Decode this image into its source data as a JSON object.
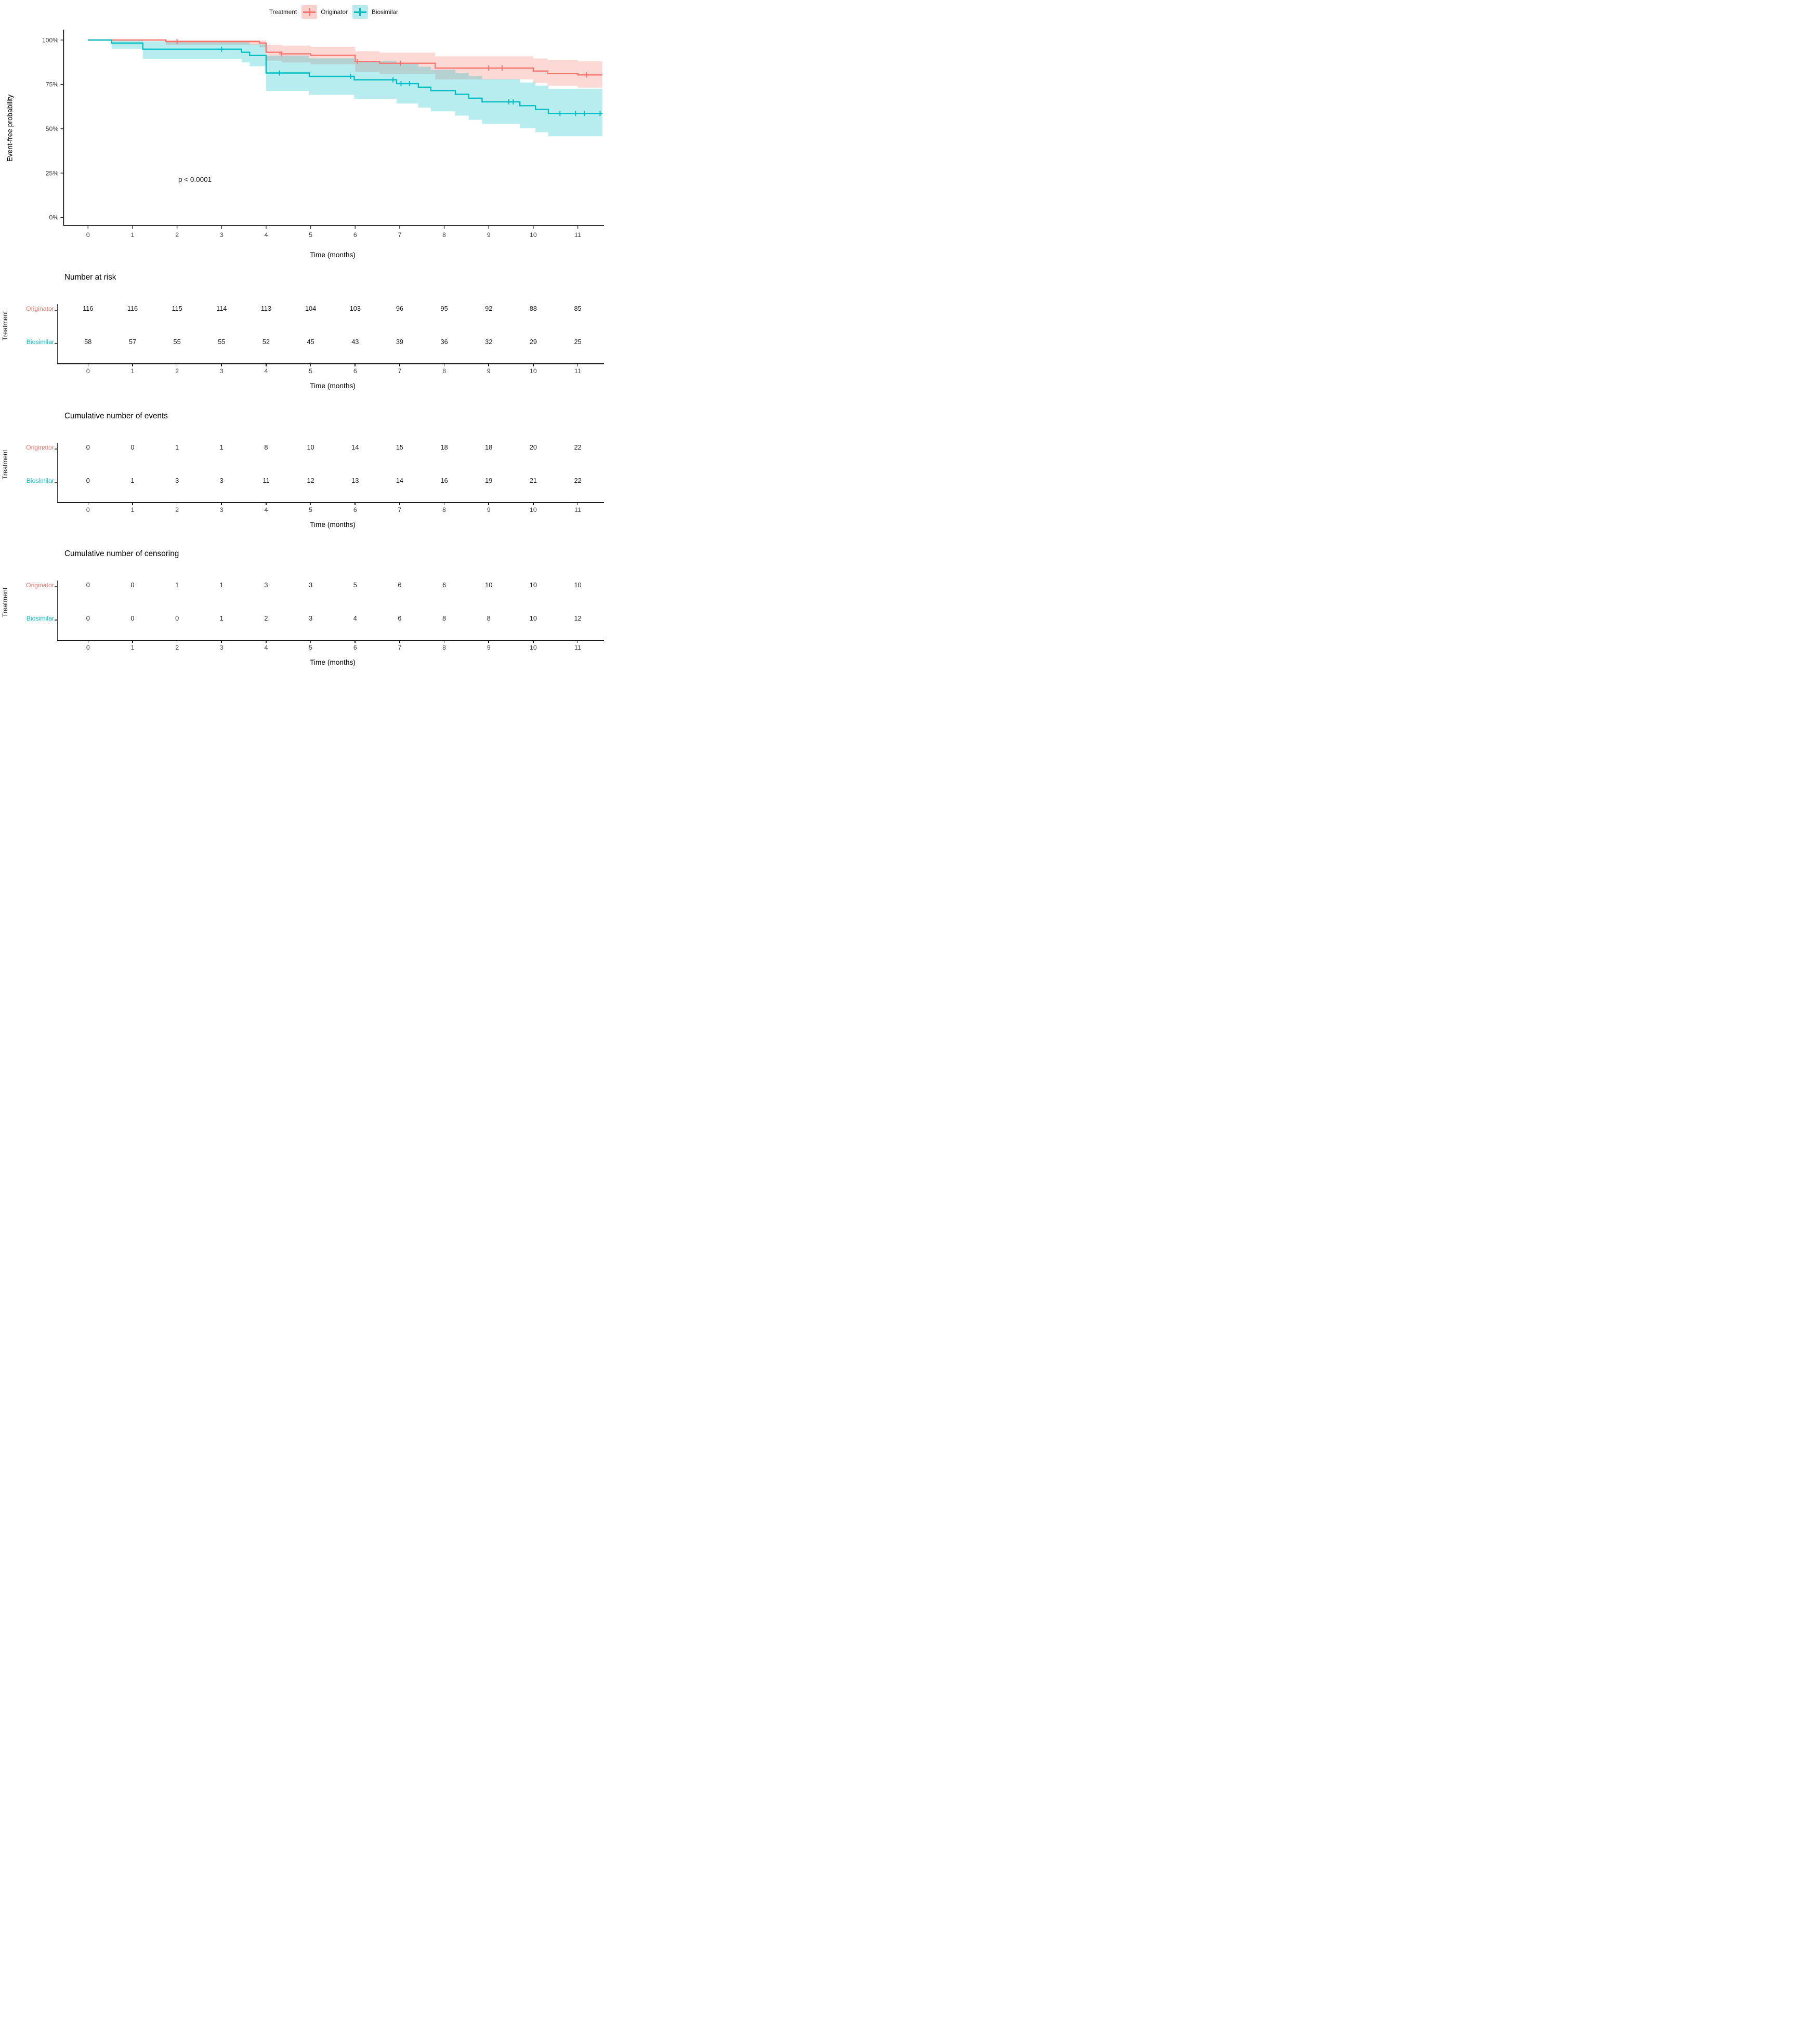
{
  "figure": {
    "legend": {
      "title": "Treatment",
      "items": [
        {
          "label": "Originator",
          "color": "#F8766D",
          "key_fill": "#FBD0CD"
        },
        {
          "label": "Biosimilar",
          "color": "#00BFC4",
          "key_fill": "#B7EBED"
        }
      ]
    },
    "km_plot": {
      "ylabel": "Event-free probability",
      "xlabel": "Time (months)",
      "pvalue": "p < 0.0001"
    }
  },
  "chart_data": {
    "type": "line",
    "subtype": "kaplan-meier-step-curves-with-confidence-bands",
    "title": "",
    "xlabel": "Time (months)",
    "ylabel": "Event-free probability",
    "xlim": [
      0,
      11.6
    ],
    "ylim": [
      0,
      100
    ],
    "grid": false,
    "legend_position": "top",
    "pvalue_annotation": {
      "text": "p < 0.0001",
      "x": 2.1,
      "y": 21
    },
    "xticks": [
      0,
      1,
      2,
      3,
      4,
      5,
      6,
      7,
      8,
      9,
      10,
      11
    ],
    "yticks": [
      {
        "v": 100,
        "label": "100%"
      },
      {
        "v": 75,
        "label": "75%"
      },
      {
        "v": 50,
        "label": "50%"
      },
      {
        "v": 25,
        "label": "25%"
      },
      {
        "v": 0,
        "label": "0%"
      }
    ],
    "series": [
      {
        "name": "Originator",
        "color": "#F8766D",
        "band_fill": "rgba(248,118,109,0.28)",
        "steps": [
          [
            0,
            100
          ],
          [
            1.75,
            99.1
          ],
          [
            3.85,
            98.3
          ],
          [
            4.0,
            93.1
          ],
          [
            4.35,
            92.2
          ],
          [
            5.0,
            91.4
          ],
          [
            6.0,
            87.9
          ],
          [
            6.55,
            86.9
          ],
          [
            7.8,
            84.2
          ],
          [
            10.0,
            82.5
          ],
          [
            10.32,
            81.2
          ],
          [
            11.0,
            80.3
          ],
          [
            11.55,
            80.3
          ]
        ],
        "censors": [
          [
            2.0,
            99.1
          ],
          [
            4.35,
            92.2
          ],
          [
            6.05,
            87.9
          ],
          [
            7.02,
            86.9
          ],
          [
            9.0,
            84.2
          ],
          [
            9.3,
            84.2
          ],
          [
            11.2,
            80.3
          ]
        ],
        "ci": [
          [
            0,
            100,
            100
          ],
          [
            1.75,
            100,
            97.2
          ],
          [
            3.85,
            99.8,
            95.9
          ],
          [
            4.0,
            97.3,
            88.3
          ],
          [
            4.35,
            96.9,
            87.3
          ],
          [
            5.0,
            96.2,
            86.3
          ],
          [
            6.0,
            93.7,
            82.1
          ],
          [
            6.55,
            92.9,
            81.0
          ],
          [
            7.8,
            90.8,
            77.8
          ],
          [
            10.0,
            89.6,
            75.7
          ],
          [
            10.32,
            88.8,
            74.2
          ],
          [
            11.0,
            88.1,
            73.1
          ],
          [
            11.55,
            88.1,
            73.1
          ]
        ]
      },
      {
        "name": "Biosimilar",
        "color": "#00BFC4",
        "band_fill": "rgba(0,191,196,0.28)",
        "steps": [
          [
            0,
            100
          ],
          [
            0.53,
            98.3
          ],
          [
            1.23,
            94.8
          ],
          [
            3.45,
            93.1
          ],
          [
            3.63,
            91.3
          ],
          [
            4.0,
            81.4
          ],
          [
            4.97,
            79.5
          ],
          [
            5.98,
            77.6
          ],
          [
            6.93,
            75.4
          ],
          [
            7.42,
            73.4
          ],
          [
            7.7,
            71.5
          ],
          [
            8.25,
            69.4
          ],
          [
            8.55,
            67.2
          ],
          [
            8.85,
            65.1
          ],
          [
            9.7,
            63.0
          ],
          [
            10.05,
            60.9
          ],
          [
            10.34,
            58.6
          ],
          [
            11.55,
            58.6
          ]
        ],
        "censors": [
          [
            3.0,
            94.8
          ],
          [
            4.3,
            81.4
          ],
          [
            5.9,
            79.5
          ],
          [
            6.85,
            77.6
          ],
          [
            7.03,
            75.4
          ],
          [
            7.22,
            75.4
          ],
          [
            9.45,
            65.1
          ],
          [
            9.55,
            65.1
          ],
          [
            10.6,
            58.6
          ],
          [
            10.95,
            58.6
          ],
          [
            11.15,
            58.6
          ],
          [
            11.5,
            58.6
          ]
        ],
        "ci": [
          [
            0,
            100,
            100
          ],
          [
            0.53,
            100,
            95.1
          ],
          [
            1.23,
            99.3,
            89.4
          ],
          [
            3.45,
            98.9,
            87.3
          ],
          [
            3.63,
            97.5,
            85.2
          ],
          [
            4.0,
            91.2,
            71.3
          ],
          [
            4.97,
            89.7,
            69.1
          ],
          [
            5.98,
            88.2,
            66.9
          ],
          [
            6.93,
            86.5,
            64.2
          ],
          [
            7.42,
            84.9,
            61.9
          ],
          [
            7.7,
            83.3,
            59.8
          ],
          [
            8.25,
            81.5,
            57.4
          ],
          [
            8.55,
            79.7,
            55.0
          ],
          [
            8.85,
            77.9,
            52.7
          ],
          [
            9.7,
            76.1,
            50.3
          ],
          [
            10.05,
            74.3,
            48.0
          ],
          [
            10.34,
            72.5,
            45.7
          ],
          [
            11.55,
            72.5,
            45.7
          ]
        ]
      }
    ],
    "tables": [
      {
        "title": "Number at risk",
        "ylabel": "Treatment",
        "xlabel": "Time (months)",
        "xticks": [
          0,
          1,
          2,
          3,
          4,
          5,
          6,
          7,
          8,
          9,
          10,
          11
        ],
        "rows": [
          {
            "label": "Originator",
            "color": "#F8766D",
            "values": [
              116,
              116,
              115,
              114,
              113,
              104,
              103,
              96,
              95,
              92,
              88,
              85
            ]
          },
          {
            "label": "Biosimilar",
            "color": "#00BFC4",
            "values": [
              58,
              57,
              55,
              55,
              52,
              45,
              43,
              39,
              36,
              32,
              29,
              25
            ]
          }
        ]
      },
      {
        "title": "Cumulative number of events",
        "ylabel": "Treatment",
        "xlabel": "Time (months)",
        "xticks": [
          0,
          1,
          2,
          3,
          4,
          5,
          6,
          7,
          8,
          9,
          10,
          11
        ],
        "rows": [
          {
            "label": "Originator",
            "color": "#F8766D",
            "values": [
              0,
              0,
              1,
              1,
              8,
              10,
              14,
              15,
              18,
              18,
              20,
              22
            ]
          },
          {
            "label": "Biosimilar",
            "color": "#00BFC4",
            "values": [
              0,
              1,
              3,
              3,
              11,
              12,
              13,
              14,
              16,
              19,
              21,
              22
            ]
          }
        ]
      },
      {
        "title": "Cumulative number of censoring",
        "ylabel": "Treatment",
        "xlabel": "Time (months)",
        "xticks": [
          0,
          1,
          2,
          3,
          4,
          5,
          6,
          7,
          8,
          9,
          10,
          11
        ],
        "rows": [
          {
            "label": "Originator",
            "color": "#F8766D",
            "values": [
              0,
              0,
              1,
              1,
              3,
              3,
              5,
              6,
              6,
              10,
              10,
              10
            ]
          },
          {
            "label": "Biosimilar",
            "color": "#00BFC4",
            "values": [
              0,
              0,
              0,
              1,
              2,
              3,
              4,
              6,
              8,
              8,
              10,
              12
            ]
          }
        ]
      }
    ]
  }
}
